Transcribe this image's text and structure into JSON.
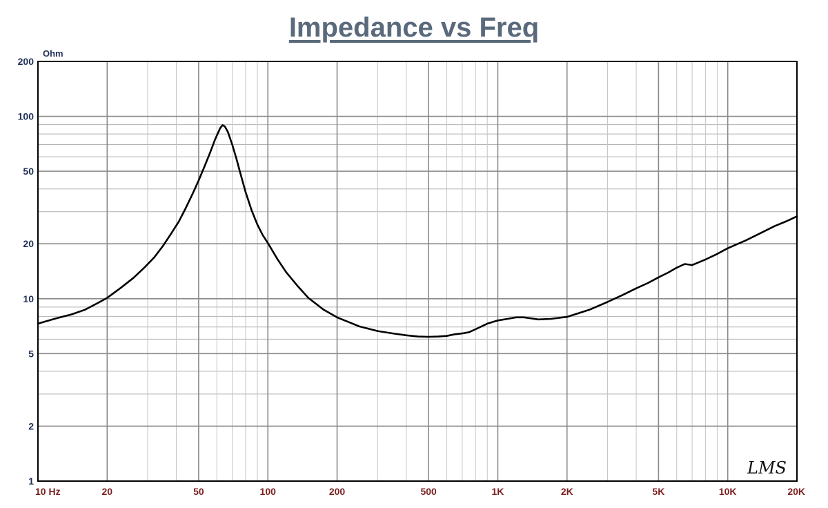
{
  "chart_data": {
    "type": "line",
    "title": "Impedance vs Freq",
    "ylabel": "Ohm",
    "x_scale": "log",
    "y_scale": "log",
    "xlim": [
      10,
      20000
    ],
    "ylim": [
      1,
      200
    ],
    "grid": true,
    "x_ticks": [
      {
        "value": 10,
        "label": "10  Hz"
      },
      {
        "value": 20,
        "label": "20"
      },
      {
        "value": 50,
        "label": "50"
      },
      {
        "value": 100,
        "label": "100"
      },
      {
        "value": 200,
        "label": "200"
      },
      {
        "value": 500,
        "label": "500"
      },
      {
        "value": 1000,
        "label": "1K"
      },
      {
        "value": 2000,
        "label": "2K"
      },
      {
        "value": 5000,
        "label": "5K"
      },
      {
        "value": 10000,
        "label": "10K"
      },
      {
        "value": 20000,
        "label": "20K"
      }
    ],
    "y_ticks": [
      {
        "value": 200,
        "label": "200"
      },
      {
        "value": 100,
        "label": "100"
      },
      {
        "value": 50,
        "label": "50"
      },
      {
        "value": 20,
        "label": "20"
      },
      {
        "value": 10,
        "label": "10"
      },
      {
        "value": 5,
        "label": "5"
      },
      {
        "value": 2,
        "label": "2"
      },
      {
        "value": 1,
        "label": "1"
      }
    ],
    "series": [
      {
        "color": "#000000",
        "x": [
          10,
          12,
          14,
          16,
          18,
          20,
          23,
          26,
          29,
          32,
          35,
          38,
          41,
          44,
          47,
          50,
          53,
          56,
          59,
          62,
          63.5,
          65,
          67,
          70,
          73,
          76,
          80,
          85,
          90,
          95,
          100,
          110,
          120,
          135,
          150,
          175,
          200,
          250,
          300,
          350,
          400,
          450,
          500,
          550,
          600,
          650,
          700,
          750,
          800,
          900,
          1000,
          1100,
          1200,
          1300,
          1400,
          1500,
          1700,
          2000,
          2500,
          3000,
          3500,
          4000,
          4500,
          5000,
          5500,
          6000,
          6500,
          7000,
          8000,
          9000,
          10000,
          12000,
          14000,
          16000,
          18000,
          20000
        ],
        "y": [
          7.3,
          7.8,
          8.2,
          8.7,
          9.4,
          10.1,
          11.5,
          13.0,
          14.8,
          16.8,
          19.5,
          22.8,
          26.5,
          31.5,
          37.5,
          44.5,
          53.0,
          63.0,
          75.0,
          86.0,
          89.5,
          88.0,
          82.0,
          70.0,
          58.5,
          48.5,
          38.5,
          30.5,
          25.5,
          22.3,
          20.2,
          16.5,
          14.0,
          11.7,
          10.1,
          8.7,
          7.9,
          7.05,
          6.65,
          6.45,
          6.3,
          6.2,
          6.18,
          6.2,
          6.25,
          6.38,
          6.45,
          6.55,
          6.8,
          7.3,
          7.6,
          7.75,
          7.9,
          7.9,
          7.8,
          7.7,
          7.75,
          7.95,
          8.7,
          9.6,
          10.5,
          11.4,
          12.2,
          13.1,
          13.9,
          14.8,
          15.5,
          15.3,
          16.4,
          17.6,
          18.9,
          20.9,
          23.0,
          25.0,
          26.6,
          28.3
        ]
      }
    ],
    "annotation": "LMS"
  }
}
